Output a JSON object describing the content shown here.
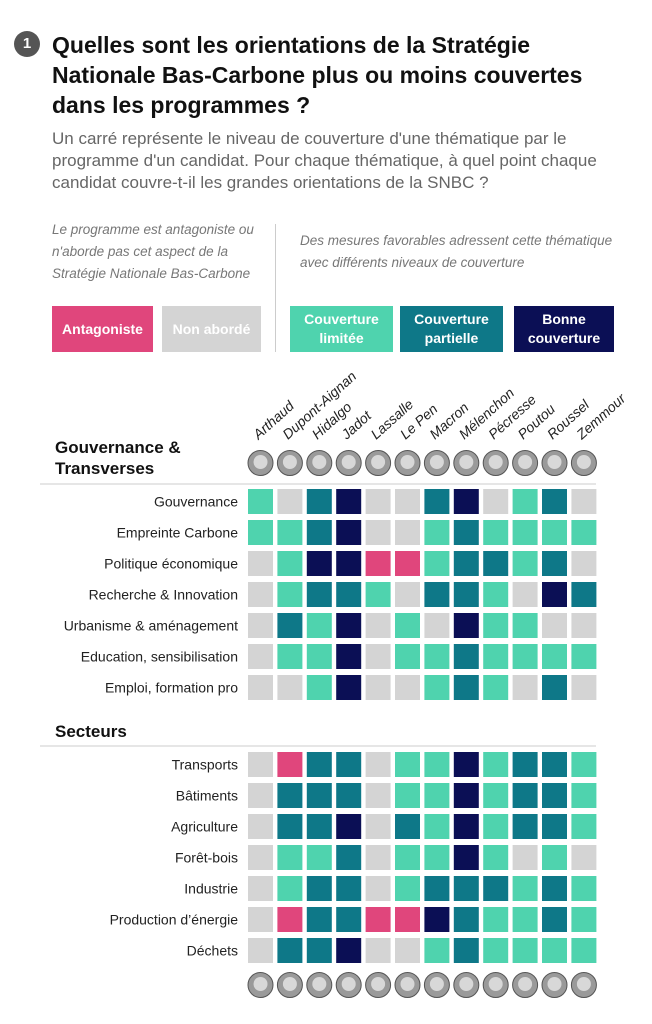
{
  "header": {
    "number": "1",
    "title": "Quelles sont les orientations de la Stratégie Nationale Bas-Carbone plus ou moins couvertes dans les programmes ?",
    "subtitle": "Un carré représente le niveau de couverture d'une thématique par le programme d'un candidat. Pour chaque thématique, à quel point chaque candidat couvre-t-il les grandes orientations de la SNBC ?"
  },
  "chart_data": {
    "type": "heatmap",
    "legend": {
      "left_note": "Le programme est antagoniste ou n'aborde pas cet aspect de la Stratégie Nationale Bas-Carbone",
      "right_note": "Des mesures favorables adressent cette thématique avec différents niveaux de couverture",
      "items": [
        {
          "label": "Antagoniste",
          "color": "#e0467c"
        },
        {
          "label": "Non abordé",
          "color": "#d4d4d4"
        },
        {
          "label": "Couverture limitée",
          "color": "#4fd3ae"
        },
        {
          "label": "Couverture partielle",
          "color": "#0e7888"
        },
        {
          "label": "Bonne couverture",
          "color": "#0b0f55"
        }
      ]
    },
    "candidates": [
      "Arthaud",
      "Dupont-Aignan",
      "Hidalgo",
      "Jadot",
      "Lassalle",
      "Le Pen",
      "Macron",
      "Mélenchon",
      "Pécresse",
      "Poutou",
      "Roussel",
      "Zemmour"
    ],
    "groups": [
      {
        "name": "Gouvernance & Transverses",
        "rows": [
          {
            "label": "Gouvernance",
            "values": [
              2,
              1,
              3,
              4,
              1,
              1,
              3,
              4,
              1,
              2,
              3,
              1
            ]
          },
          {
            "label": "Empreinte Carbone",
            "values": [
              2,
              2,
              3,
              4,
              1,
              1,
              2,
              3,
              2,
              2,
              2,
              2
            ]
          },
          {
            "label": "Politique économique",
            "values": [
              1,
              2,
              4,
              4,
              0,
              0,
              2,
              3,
              3,
              2,
              3,
              1
            ]
          },
          {
            "label": "Recherche & Innovation",
            "values": [
              1,
              2,
              3,
              3,
              2,
              1,
              3,
              3,
              2,
              1,
              4,
              3
            ]
          },
          {
            "label": "Urbanisme & aménagement",
            "values": [
              1,
              3,
              2,
              4,
              1,
              2,
              1,
              4,
              2,
              2,
              1,
              1
            ]
          },
          {
            "label": "Education, sensibilisation",
            "values": [
              1,
              2,
              2,
              4,
              1,
              2,
              2,
              3,
              2,
              2,
              2,
              2
            ]
          },
          {
            "label": "Emploi, formation pro",
            "values": [
              1,
              1,
              2,
              4,
              1,
              1,
              2,
              3,
              2,
              1,
              3,
              1
            ]
          }
        ]
      },
      {
        "name": "Secteurs",
        "rows": [
          {
            "label": "Transports",
            "values": [
              1,
              0,
              3,
              3,
              1,
              2,
              2,
              4,
              2,
              3,
              3,
              2
            ]
          },
          {
            "label": "Bâtiments",
            "values": [
              1,
              3,
              3,
              3,
              1,
              2,
              2,
              4,
              2,
              3,
              3,
              2
            ]
          },
          {
            "label": "Agriculture",
            "values": [
              1,
              3,
              3,
              4,
              1,
              3,
              2,
              4,
              2,
              3,
              3,
              2
            ]
          },
          {
            "label": "Forêt-bois",
            "values": [
              1,
              2,
              2,
              3,
              1,
              2,
              2,
              4,
              2,
              1,
              2,
              1
            ]
          },
          {
            "label": "Industrie",
            "values": [
              1,
              2,
              3,
              3,
              1,
              2,
              3,
              3,
              3,
              2,
              3,
              2
            ]
          },
          {
            "label": "Production d’énergie",
            "values": [
              1,
              0,
              3,
              3,
              0,
              0,
              4,
              3,
              2,
              2,
              3,
              2
            ]
          },
          {
            "label": "Déchets",
            "values": [
              1,
              3,
              3,
              4,
              1,
              1,
              2,
              3,
              2,
              2,
              2,
              2
            ]
          }
        ]
      }
    ]
  }
}
